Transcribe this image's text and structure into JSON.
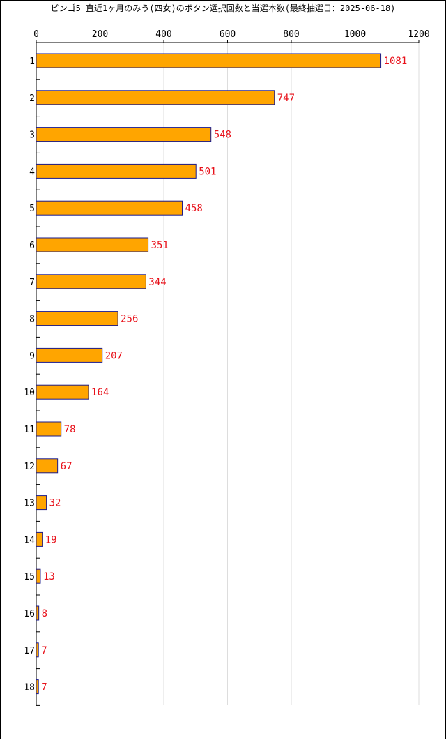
{
  "chart_data": {
    "type": "bar",
    "orientation": "horizontal",
    "title": "ビンゴ5 直近1ヶ月のみう(四女)のボタン選択回数と当選本数(最終抽選日：2025-06-18)",
    "categories": [
      "1",
      "2",
      "3",
      "4",
      "5",
      "6",
      "7",
      "8",
      "9",
      "10",
      "11",
      "12",
      "13",
      "14",
      "15",
      "16",
      "17",
      "18"
    ],
    "values": [
      1081,
      747,
      548,
      501,
      458,
      351,
      344,
      256,
      207,
      164,
      78,
      67,
      32,
      19,
      13,
      8,
      7,
      7
    ],
    "xlim": [
      0,
      1200
    ],
    "xticks": [
      "0",
      "200",
      "400",
      "600",
      "800",
      "1000",
      "1200"
    ],
    "xtick_values": [
      0,
      200,
      400,
      600,
      800,
      1000,
      1200
    ],
    "xaxis_position": "top",
    "grid": "vertical",
    "legend": "none",
    "colors": {
      "bar_fill": "#FFA500",
      "bar_stroke": "#1A1A8C",
      "data_label": "#E8111A",
      "grid": "#DDDDDD",
      "axis": "#000000"
    }
  }
}
